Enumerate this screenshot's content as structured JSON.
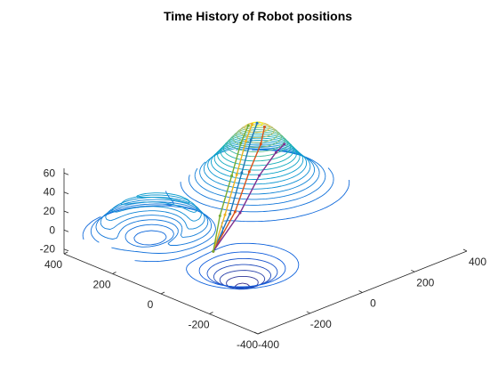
{
  "chart_data": {
    "type": "3d-contour",
    "title": "Time History of Robot positions",
    "xlabel": "",
    "ylabel": "",
    "zlabel": "",
    "x_ticks": [
      "-400",
      "-200",
      "0",
      "200",
      "400"
    ],
    "y_ticks": [
      "-400",
      "-200",
      "0",
      "200",
      "400"
    ],
    "z_ticks": [
      "-20",
      "0",
      "20",
      "40",
      "60"
    ],
    "xlim": [
      -400,
      400
    ],
    "ylim": [
      -400,
      400
    ],
    "zlim": [
      -25,
      65
    ],
    "grid": false,
    "colormap": "parula",
    "contour_levels": 26,
    "surface_features": [
      {
        "kind": "peak",
        "x": 200,
        "y": 250,
        "z": 63
      },
      {
        "kind": "well",
        "x": -200,
        "y": -120,
        "z": -27
      },
      {
        "kind": "ridge-ring",
        "x": -250,
        "y": 200,
        "z": 42
      }
    ],
    "robot_paths": [
      {
        "color": "#1f77b4",
        "points": [
          [
            -200,
            0,
            -2
          ],
          [
            -80,
            60,
            18
          ],
          [
            30,
            130,
            42
          ],
          [
            130,
            200,
            58
          ],
          [
            200,
            250,
            63
          ]
        ]
      },
      {
        "color": "#d95319",
        "points": [
          [
            -200,
            0,
            -2
          ],
          [
            -70,
            50,
            20
          ],
          [
            40,
            110,
            44
          ],
          [
            140,
            170,
            56
          ],
          [
            210,
            230,
            60
          ]
        ]
      },
      {
        "color": "#edb120",
        "points": [
          [
            -200,
            0,
            -2
          ],
          [
            -90,
            70,
            17
          ],
          [
            20,
            140,
            40
          ],
          [
            120,
            210,
            57
          ],
          [
            190,
            260,
            62
          ]
        ]
      },
      {
        "color": "#7e2f8e",
        "points": [
          [
            -200,
            0,
            -2
          ],
          [
            -60,
            40,
            19
          ],
          [
            60,
            90,
            40
          ],
          [
            170,
            140,
            47
          ],
          [
            230,
            170,
            46
          ]
        ]
      },
      {
        "color": "#77ac30",
        "points": [
          [
            -200,
            0,
            -2
          ],
          [
            -100,
            80,
            16
          ],
          [
            10,
            150,
            39
          ],
          [
            110,
            220,
            55
          ],
          [
            180,
            265,
            61
          ]
        ]
      }
    ]
  }
}
